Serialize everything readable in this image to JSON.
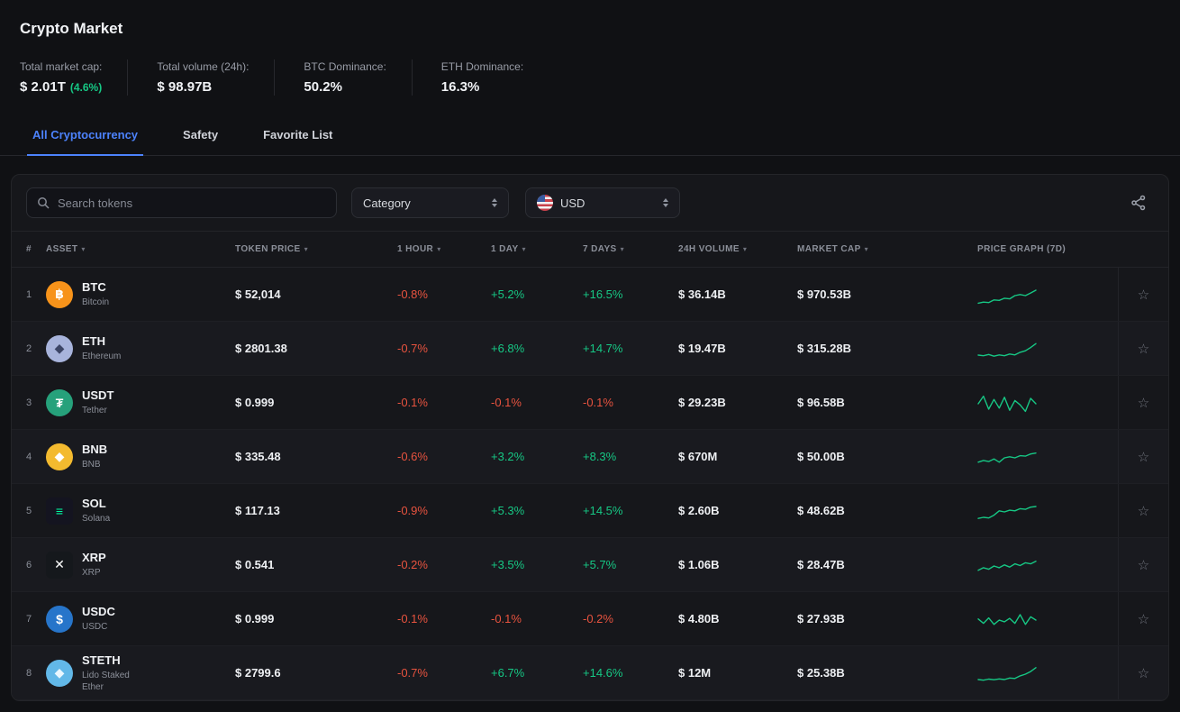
{
  "header": {
    "title": "Crypto Market"
  },
  "stats": [
    {
      "label": "Total market cap:",
      "value": "$ 2.01T",
      "extra": "(4.6%)"
    },
    {
      "label": "Total volume (24h):",
      "value": "$ 98.97B"
    },
    {
      "label": "BTC Dominance:",
      "value": "50.2%"
    },
    {
      "label": "ETH Dominance:",
      "value": "16.3%"
    }
  ],
  "tabs": [
    {
      "label": "All Cryptocurrency",
      "active": true
    },
    {
      "label": "Safety",
      "active": false
    },
    {
      "label": "Favorite List",
      "active": false
    }
  ],
  "filters": {
    "search_placeholder": "Search tokens",
    "category_label": "Category",
    "currency_value": "USD"
  },
  "icons": {
    "sort_caret": "▾",
    "star": "☆"
  },
  "colors": {
    "positive": "#16c784",
    "negative": "#e8533f",
    "accent": "#4c82fb",
    "spark": "#16c784"
  },
  "table": {
    "columns": [
      {
        "label": "#",
        "sortable": false
      },
      {
        "label": "ASSET",
        "sortable": true
      },
      {
        "label": "TOKEN PRICE",
        "sortable": true
      },
      {
        "label": "1 HOUR",
        "sortable": true
      },
      {
        "label": "1 DAY",
        "sortable": true
      },
      {
        "label": "7 DAYS",
        "sortable": true
      },
      {
        "label": "24H VOLUME",
        "sortable": true
      },
      {
        "label": "MARKET CAP",
        "sortable": true
      },
      {
        "label": "PRICE GRAPH (7D)",
        "sortable": false
      }
    ],
    "rows": [
      {
        "rank": "1",
        "symbol": "BTC",
        "name": "Bitcoin",
        "price": "$ 52,014",
        "h1": "-0.8%",
        "d1": "+5.2%",
        "d7": "+16.5%",
        "volume": "$ 36.14B",
        "mcap": "$ 970.53B",
        "icon": {
          "bg": "#f7931a",
          "fg": "#ffffff",
          "glyph": "฿",
          "shape": "circle"
        },
        "spark": [
          0.15,
          0.2,
          0.18,
          0.3,
          0.28,
          0.38,
          0.35,
          0.5,
          0.55,
          0.5,
          0.62,
          0.75
        ]
      },
      {
        "rank": "2",
        "symbol": "ETH",
        "name": "Ethereum",
        "price": "$ 2801.38",
        "h1": "-0.7%",
        "d1": "+6.8%",
        "d7": "+14.7%",
        "volume": "$ 19.47B",
        "mcap": "$ 315.28B",
        "icon": {
          "bg": "#a8b4dc",
          "fg": "#3c4566",
          "glyph": "◆",
          "shape": "circle"
        },
        "spark": [
          0.25,
          0.22,
          0.28,
          0.2,
          0.26,
          0.22,
          0.3,
          0.26,
          0.38,
          0.45,
          0.6,
          0.78
        ]
      },
      {
        "rank": "3",
        "symbol": "USDT",
        "name": "Tether",
        "price": "$ 0.999",
        "h1": "-0.1%",
        "d1": "-0.1%",
        "d7": "-0.1%",
        "volume": "$ 29.23B",
        "mcap": "$ 96.58B",
        "icon": {
          "bg": "#26a17b",
          "fg": "#ffffff",
          "glyph": "₮",
          "shape": "circle"
        },
        "spark": [
          0.5,
          0.85,
          0.25,
          0.7,
          0.3,
          0.8,
          0.2,
          0.65,
          0.45,
          0.15,
          0.75,
          0.5
        ]
      },
      {
        "rank": "4",
        "symbol": "BNB",
        "name": "BNB",
        "price": "$ 335.48",
        "h1": "-0.6%",
        "d1": "+3.2%",
        "d7": "+8.3%",
        "volume": "$ 670M",
        "mcap": "$ 50.00B",
        "icon": {
          "bg": "#f3ba2f",
          "fg": "#ffffff",
          "glyph": "◆",
          "shape": "circle"
        },
        "spark": [
          0.3,
          0.38,
          0.33,
          0.45,
          0.3,
          0.5,
          0.55,
          0.5,
          0.6,
          0.58,
          0.68,
          0.72
        ]
      },
      {
        "rank": "5",
        "symbol": "SOL",
        "name": "Solana",
        "price": "$ 117.13",
        "h1": "-0.9%",
        "d1": "+5.3%",
        "d7": "+14.5%",
        "volume": "$ 2.60B",
        "mcap": "$ 48.62B",
        "icon": {
          "bg": "#141420",
          "fg": "#00ffa3",
          "glyph": "≡",
          "shape": "square"
        },
        "spark": [
          0.2,
          0.25,
          0.22,
          0.35,
          0.55,
          0.5,
          0.58,
          0.55,
          0.65,
          0.62,
          0.72,
          0.75
        ]
      },
      {
        "rank": "6",
        "symbol": "XRP",
        "name": "XRP",
        "price": "$ 0.541",
        "h1": "-0.2%",
        "d1": "+3.5%",
        "d7": "+5.7%",
        "volume": "$ 1.06B",
        "mcap": "$ 28.47B",
        "icon": {
          "bg": "#15181c",
          "fg": "#ffffff",
          "glyph": "✕",
          "shape": "square"
        },
        "spark": [
          0.3,
          0.42,
          0.35,
          0.5,
          0.42,
          0.55,
          0.45,
          0.6,
          0.52,
          0.65,
          0.6,
          0.72
        ]
      },
      {
        "rank": "7",
        "symbol": "USDC",
        "name": "USDC",
        "price": "$ 0.999",
        "h1": "-0.1%",
        "d1": "-0.1%",
        "d7": "-0.2%",
        "volume": "$ 4.80B",
        "mcap": "$ 27.93B",
        "icon": {
          "bg": "#2775ca",
          "fg": "#ffffff",
          "glyph": "$",
          "shape": "circle"
        },
        "spark": [
          0.55,
          0.35,
          0.6,
          0.3,
          0.5,
          0.42,
          0.58,
          0.35,
          0.75,
          0.3,
          0.65,
          0.5
        ]
      },
      {
        "rank": "8",
        "symbol": "STETH",
        "name": "Lido Staked Ether",
        "price": "$ 2799.6",
        "h1": "-0.7%",
        "d1": "+6.7%",
        "d7": "+14.6%",
        "volume": "$ 12M",
        "mcap": "$ 25.38B",
        "icon": {
          "bg": "#62b8e8",
          "fg": "#eaf7ff",
          "glyph": "◆",
          "shape": "circle"
        },
        "spark": [
          0.25,
          0.22,
          0.27,
          0.24,
          0.28,
          0.25,
          0.32,
          0.3,
          0.42,
          0.5,
          0.62,
          0.8
        ]
      }
    ]
  }
}
